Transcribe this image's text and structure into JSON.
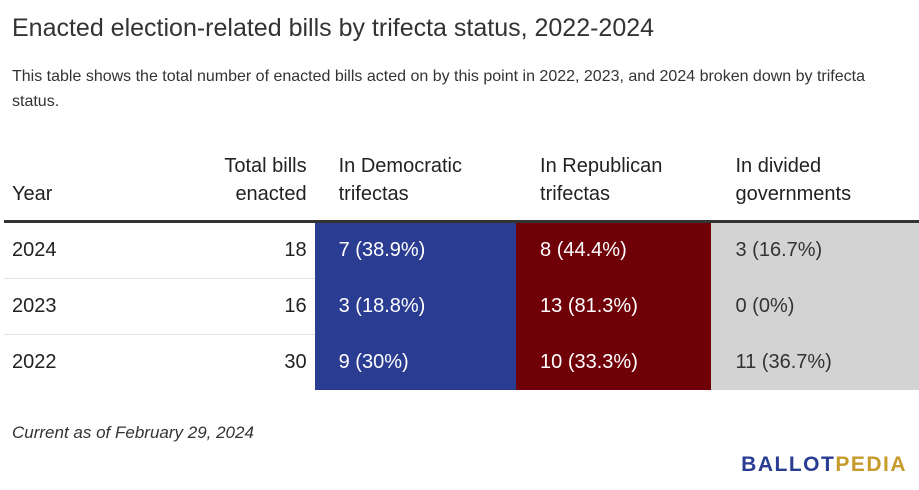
{
  "title": "Enacted election-related bills by trifecta status, 2022-2024",
  "subtitle": "This table shows the total number of enacted bills acted on by this point in 2022, 2023, and 2024 broken down by trifecta status.",
  "note": "Current as of February 29, 2024",
  "logo": {
    "part1": "BALLOT",
    "part2": "PEDIA"
  },
  "colors": {
    "democratic": "#2b3d92",
    "republican": "#700008",
    "divided": "#d3d3d3"
  },
  "chart_data": {
    "type": "table",
    "columns": [
      {
        "line1": "Year",
        "line2": ""
      },
      {
        "line1": "Total bills",
        "line2": "enacted"
      },
      {
        "line1": "In Democratic",
        "line2": "trifectas"
      },
      {
        "line1": "In Republican",
        "line2": "trifectas"
      },
      {
        "line1": "In divided",
        "line2": "governments"
      }
    ],
    "rows": [
      {
        "year": "2024",
        "total": "18",
        "dem": "7 (38.9%)",
        "rep": "8 (44.4%)",
        "div": "3 (16.7%)"
      },
      {
        "year": "2023",
        "total": "16",
        "dem": "3 (18.8%)",
        "rep": "13 (81.3%)",
        "div": "0 (0%)"
      },
      {
        "year": "2022",
        "total": "30",
        "dem": "9 (30%)",
        "rep": "10 (33.3%)",
        "div": "11 (36.7%)"
      }
    ]
  }
}
